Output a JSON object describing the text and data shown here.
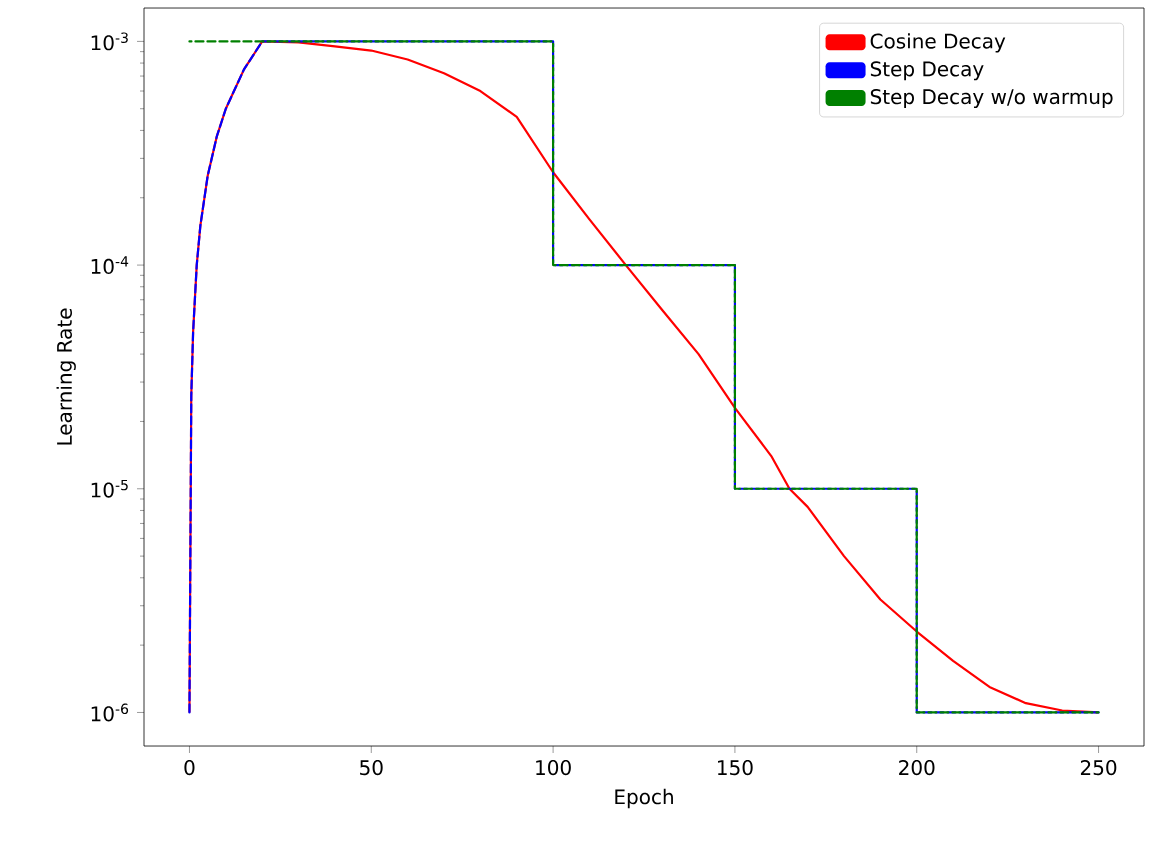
{
  "chart_data": {
    "type": "line",
    "xlabel": "Epoch",
    "ylabel": "Learning Rate",
    "log": "y",
    "legend": "top right",
    "marker": "none",
    "xlim": [
      -12.5,
      262.5
    ],
    "xticks": [
      0,
      50,
      100,
      150,
      200,
      250
    ],
    "ylim": [
      7.08e-07,
      0.00141
    ],
    "yticks": [
      {
        "value": 1e-06,
        "label": "10$^{-6}$"
      },
      {
        "value": 1e-05,
        "label": "10$^{-5}$"
      },
      {
        "value": 0.0001,
        "label": "10$^{-4}$"
      },
      {
        "value": 0.001,
        "label": "10$^{-3}$"
      }
    ],
    "series": [
      {
        "name": "Cosine Decay",
        "color": "#ff0000",
        "line_style": "solid",
        "x": [
          0,
          0.5,
          1,
          2,
          3,
          5,
          7.5,
          10,
          15,
          20,
          30,
          40,
          50,
          60,
          70,
          80,
          90,
          100,
          110,
          120,
          130,
          140,
          150,
          160,
          165,
          170,
          180,
          190,
          200,
          210,
          220,
          230,
          240,
          250
        ],
        "values": [
          1e-06,
          2.6e-05,
          5e-05,
          0.0001,
          0.00015,
          0.00025,
          0.000375,
          0.0005,
          0.00075,
          0.001,
          0.00099,
          0.00095,
          0.00091,
          0.00083,
          0.00072,
          0.0006,
          0.00046,
          0.00026,
          0.00016,
          0.0001,
          6.3e-05,
          4e-05,
          2.3e-05,
          1.4e-05,
          1e-05,
          8.3e-06,
          5e-06,
          3.2e-06,
          2.3e-06,
          1.7e-06,
          1.3e-06,
          1.1e-06,
          1.02e-06,
          1e-06
        ]
      },
      {
        "name": "Step Decay",
        "color": "#0000ff",
        "line_style": "dashed",
        "x": [
          0,
          0.5,
          1,
          2,
          3,
          5,
          7.5,
          10,
          15,
          20,
          100,
          100,
          150,
          150,
          200,
          200,
          250
        ],
        "values": [
          1e-06,
          2.6e-05,
          5e-05,
          0.0001,
          0.00015,
          0.00025,
          0.000375,
          0.0005,
          0.00075,
          0.001,
          0.001,
          0.0001,
          0.0001,
          1e-05,
          1e-05,
          1e-06,
          1e-06
        ]
      },
      {
        "name": "Step Decay w/o warmup",
        "color": "#008000",
        "line_style": "dashed",
        "x": [
          0,
          100,
          100,
          150,
          150,
          200,
          200,
          250
        ],
        "values": [
          0.001,
          0.001,
          0.0001,
          0.0001,
          1e-05,
          1e-05,
          1e-06,
          1e-06
        ]
      }
    ]
  }
}
